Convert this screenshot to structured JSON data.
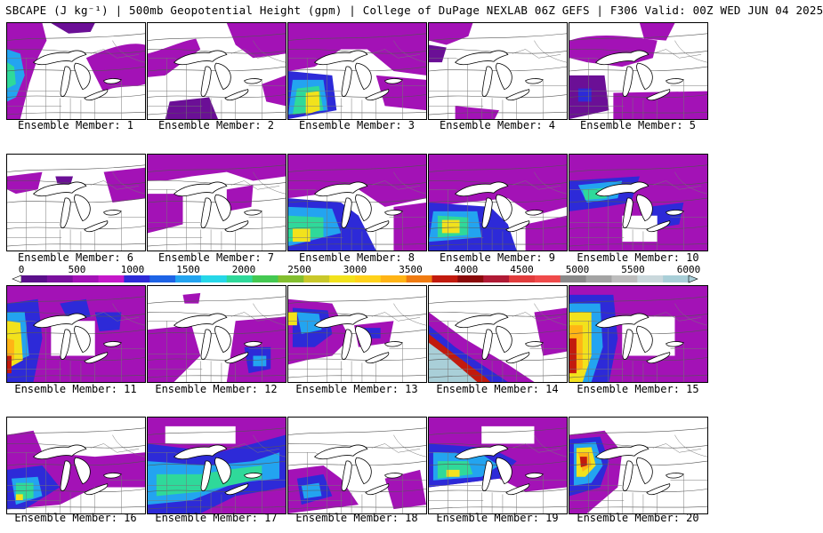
{
  "header": {
    "title": "SBCAPE (J kg⁻¹) | 500mb Geopotential Height (gpm) | College of DuPage NEXLAB 06Z GEFS | F306 Valid: 00Z WED JUN 04 2025"
  },
  "colorbar": {
    "ticks": [
      "0",
      "500",
      "1000",
      "1500",
      "2000",
      "2500",
      "3000",
      "3500",
      "4000",
      "4500",
      "5000",
      "5500",
      "6000"
    ],
    "colors": [
      "#5a0f8a",
      "#7a109e",
      "#a312b6",
      "#c517c9",
      "#2d2ad8",
      "#1e64e6",
      "#23a4f0",
      "#26d7e8",
      "#2fd99a",
      "#44c952",
      "#83bf2f",
      "#c9c82a",
      "#f2e21c",
      "#ffd21a",
      "#ffb415",
      "#f07b11",
      "#c21a0e",
      "#8b0a0a",
      "#b01a35",
      "#e13c3c",
      "#f04a4a",
      "#8a8a8a",
      "#a3a3a3",
      "#bdbdbd",
      "#cad8dc",
      "#a9cfd8"
    ]
  },
  "members": [
    {
      "label": "Ensemble Member: 1"
    },
    {
      "label": "Ensemble Member: 2"
    },
    {
      "label": "Ensemble Member: 3"
    },
    {
      "label": "Ensemble Member: 4"
    },
    {
      "label": "Ensemble Member: 5"
    },
    {
      "label": "Ensemble Member: 6"
    },
    {
      "label": "Ensemble Member: 7"
    },
    {
      "label": "Ensemble Member: 8"
    },
    {
      "label": "Ensemble Member: 9"
    },
    {
      "label": "Ensemble Member: 10"
    },
    {
      "label": "Ensemble Member: 11"
    },
    {
      "label": "Ensemble Member: 12"
    },
    {
      "label": "Ensemble Member: 13"
    },
    {
      "label": "Ensemble Member: 14"
    },
    {
      "label": "Ensemble Member: 15"
    },
    {
      "label": "Ensemble Member: 16"
    },
    {
      "label": "Ensemble Member: 17"
    },
    {
      "label": "Ensemble Member: 18"
    },
    {
      "label": "Ensemble Member: 19"
    },
    {
      "label": "Ensemble Member: 20"
    }
  ]
}
